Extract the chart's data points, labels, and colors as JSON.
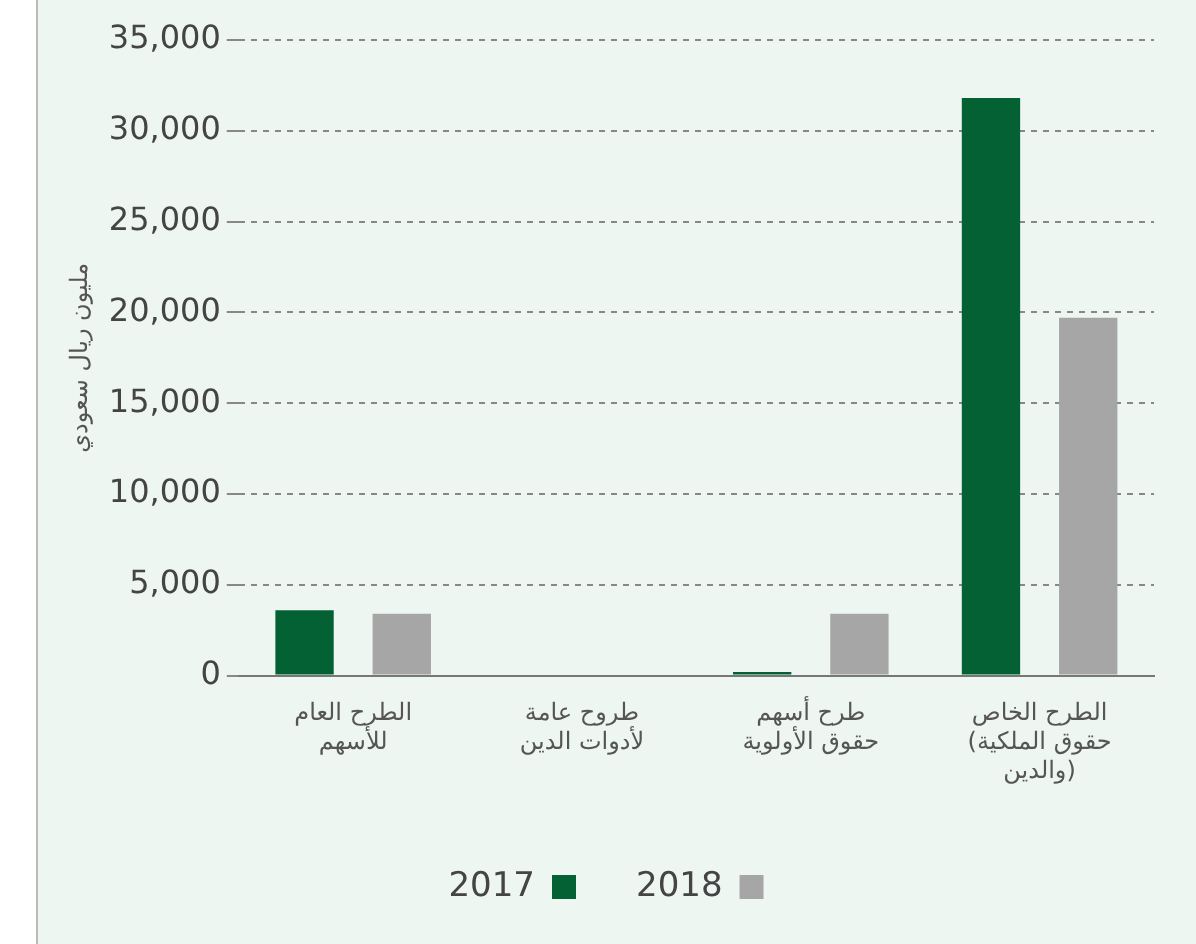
{
  "chart_data": {
    "type": "bar",
    "ylabel": "مليون ريال سعودي",
    "categories": [
      "الطرح العام\nللأسهم",
      "طروح عامة\nلأدوات الدين",
      "طرح أسهم\nحقوق الأولوية",
      "الطرح الخاص\n(حقوق الملكية\nوالدين)"
    ],
    "series": [
      {
        "name": "2017",
        "color": "#046133",
        "values": [
          3600,
          0,
          200,
          31800
        ]
      },
      {
        "name": "2018",
        "color": "#a6a6a6",
        "values": [
          3400,
          0,
          3400,
          19700
        ]
      }
    ],
    "ylim": [
      0,
      35000
    ],
    "yticks": [
      {
        "value": 0,
        "label": "0"
      },
      {
        "value": 5000,
        "label": "5,000"
      },
      {
        "value": 10000,
        "label": "10,000"
      },
      {
        "value": 15000,
        "label": "15,000"
      },
      {
        "value": 20000,
        "label": "20,000"
      },
      {
        "value": 25000,
        "label": "25,000"
      },
      {
        "value": 30000,
        "label": "30,000"
      },
      {
        "value": 35000,
        "label": "35,000"
      }
    ],
    "grid": "y",
    "legend": "bottom"
  }
}
